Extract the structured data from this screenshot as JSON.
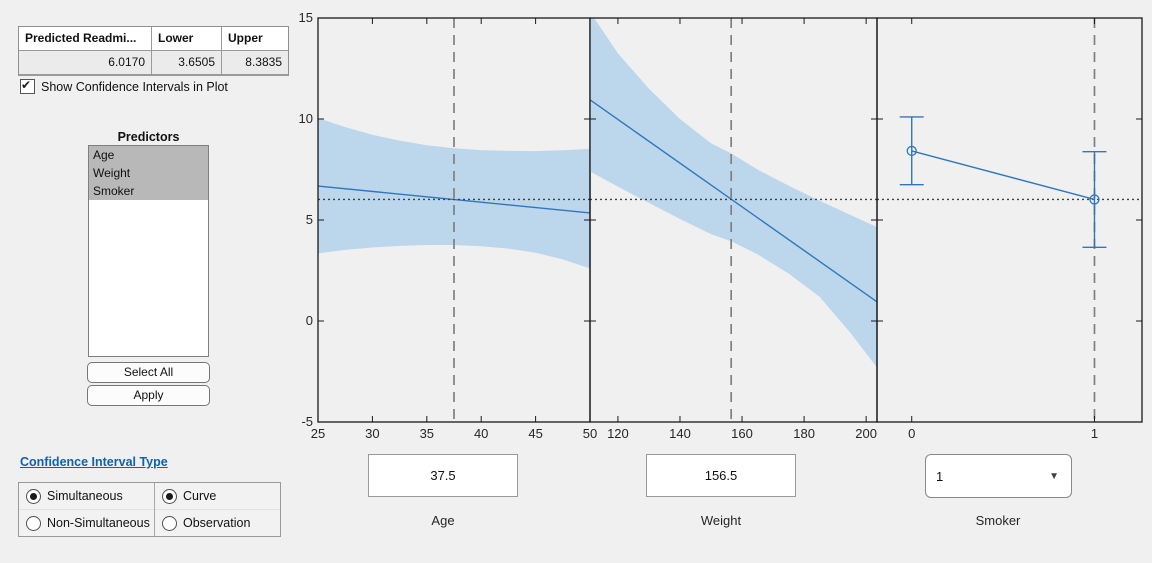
{
  "results_table": {
    "headers": [
      "Predicted Readmi...",
      "Lower",
      "Upper"
    ],
    "values": [
      "6.0170",
      "3.6505",
      "8.3835"
    ]
  },
  "show_ci_checkbox": {
    "label": "Show Confidence Intervals in Plot",
    "checked": true
  },
  "predictors": {
    "title": "Predictors",
    "items": [
      "Age",
      "Weight",
      "Smoker"
    ],
    "selected": [
      0,
      1,
      2
    ]
  },
  "buttons": {
    "select_all": "Select All",
    "apply": "Apply"
  },
  "ci_type": {
    "link": "Confidence Interval Type",
    "group1": [
      {
        "label": "Simultaneous",
        "selected": true
      },
      {
        "label": "Non-Simultaneous",
        "selected": false
      }
    ],
    "group2": [
      {
        "label": "Curve",
        "selected": true
      },
      {
        "label": "Observation",
        "selected": false
      }
    ]
  },
  "inputs": {
    "age": {
      "value": "37.5",
      "label": "Age"
    },
    "weight": {
      "value": "156.5",
      "label": "Weight"
    },
    "smoker": {
      "value": "1",
      "label": "Smoker"
    }
  },
  "colors": {
    "figure_bg": "#f0f0f0",
    "band": "#bcd6ec",
    "fit_line": "#2f77bd",
    "dashed_ref": "#808080",
    "dotted_ref": "#3f3f3f",
    "frame": "#1a1a1a",
    "tick_text": "#262626"
  },
  "chart_data": {
    "type": "line",
    "description": "Prediction slice plots with confidence bands",
    "ylim": [
      -5,
      15
    ],
    "yticks": [
      -5,
      0,
      5,
      10,
      15
    ],
    "predicted_value": 6.017,
    "panels": [
      {
        "name": "Age",
        "xlim": [
          25,
          50
        ],
        "xticks": [
          25,
          30,
          35,
          40,
          45,
          50
        ],
        "current_x": 37.5,
        "fit_x": [
          25,
          50
        ],
        "fit_y": [
          6.68,
          5.35
        ],
        "band_x": [
          25,
          27.5,
          30,
          32.5,
          35,
          37.5,
          40,
          42.5,
          45,
          47.5,
          50
        ],
        "band_upper": [
          10.05,
          9.6,
          9.22,
          8.93,
          8.7,
          8.55,
          8.46,
          8.42,
          8.41,
          8.45,
          8.52
        ],
        "band_lower": [
          3.35,
          3.52,
          3.64,
          3.72,
          3.76,
          3.76,
          3.7,
          3.58,
          3.38,
          3.05,
          2.6
        ],
        "show_y_labels": true
      },
      {
        "name": "Weight",
        "xlim": [
          111,
          203.5
        ],
        "xticks": [
          120,
          140,
          160,
          180,
          200
        ],
        "current_x": 156.5,
        "fit_x": [
          111,
          203.5
        ],
        "fit_y": [
          10.95,
          0.95
        ],
        "band_x": [
          111,
          120,
          130,
          140,
          150,
          156.5,
          165,
          175,
          185,
          195,
          203.5
        ],
        "band_upper": [
          15.3,
          13.25,
          11.5,
          10.0,
          8.8,
          8.3,
          7.5,
          6.7,
          5.95,
          5.25,
          4.65
        ],
        "band_lower": [
          7.4,
          6.65,
          5.85,
          5.05,
          4.3,
          3.95,
          3.3,
          2.35,
          1.2,
          -0.6,
          -2.3
        ],
        "show_y_labels": false
      },
      {
        "name": "Smoker",
        "xlim": [
          -0.19,
          1.26
        ],
        "xticks": [
          0,
          1
        ],
        "current_x": 1,
        "points_x": [
          0,
          1
        ],
        "points_y": [
          8.42,
          6.017
        ],
        "err_lower": [
          6.75,
          3.65
        ],
        "err_upper": [
          10.1,
          8.38
        ],
        "show_y_labels": false
      }
    ]
  }
}
